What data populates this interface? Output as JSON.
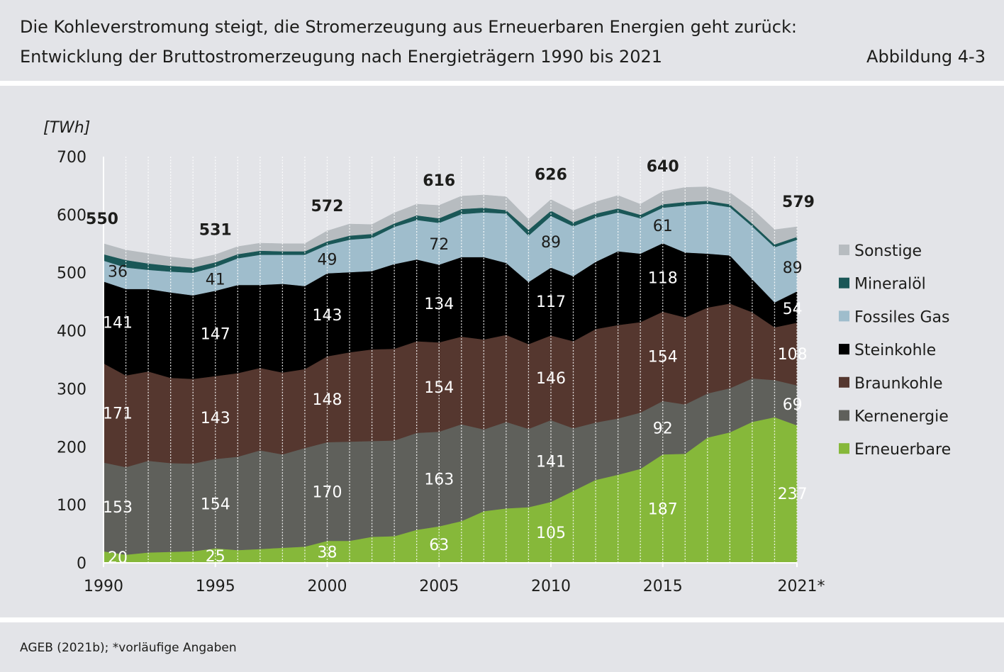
{
  "header": {
    "title_line1": "Die Kohleverstromung steigt, die Stromerzeugung aus Erneuerbaren Energien geht zurück:",
    "title_line2": "Entwicklung der Bruttostromerzeugung nach Energieträgern 1990 bis 2021",
    "figure_number": "Abbildung 4-3"
  },
  "footer": {
    "source": "AGEB (2021b); *vorläufige Angaben"
  },
  "chart_data": {
    "type": "area",
    "stacked": true,
    "ylabel": "[TWh]",
    "ylim": [
      0,
      700
    ],
    "yticks": [
      0,
      100,
      200,
      300,
      400,
      500,
      600,
      700
    ],
    "x": [
      1990,
      1991,
      1992,
      1993,
      1994,
      1995,
      1996,
      1997,
      1998,
      1999,
      2000,
      2001,
      2002,
      2003,
      2004,
      2005,
      2006,
      2007,
      2008,
      2009,
      2010,
      2011,
      2012,
      2013,
      2014,
      2015,
      2016,
      2017,
      2018,
      2019,
      2020,
      2021
    ],
    "xticks": [
      {
        "x": 1990,
        "label": "1990"
      },
      {
        "x": 1995,
        "label": "1995"
      },
      {
        "x": 2000,
        "label": "2000"
      },
      {
        "x": 2005,
        "label": "2005"
      },
      {
        "x": 2010,
        "label": "2010"
      },
      {
        "x": 2015,
        "label": "2015"
      },
      {
        "x": 2021,
        "label": "2021*"
      }
    ],
    "grid_x": true,
    "legend_position": "right",
    "series": [
      {
        "name": "Erneuerbare",
        "color": "#86b83a",
        "values": [
          20,
          14,
          18,
          19,
          20,
          25,
          22,
          24,
          26,
          28,
          38,
          38,
          45,
          46,
          57,
          63,
          72,
          89,
          94,
          96,
          105,
          124,
          143,
          152,
          162,
          187,
          188,
          216,
          225,
          243,
          251,
          237
        ],
        "labels": [
          {
            "x": 1990,
            "text": "20"
          },
          {
            "x": 1995,
            "text": "25"
          },
          {
            "x": 2000,
            "text": "38"
          },
          {
            "x": 2005,
            "text": "63"
          },
          {
            "x": 2010,
            "text": "105"
          },
          {
            "x": 2015,
            "text": "187"
          },
          {
            "x": 2020.8,
            "text": "237"
          }
        ]
      },
      {
        "name": "Kernenergie",
        "color": "#5f605b",
        "values": [
          153,
          151,
          158,
          153,
          151,
          154,
          161,
          170,
          161,
          170,
          170,
          171,
          165,
          165,
          167,
          163,
          167,
          141,
          149,
          135,
          141,
          108,
          99,
          97,
          97,
          92,
          85,
          76,
          76,
          75,
          64,
          69
        ],
        "labels": [
          {
            "x": 1990,
            "text": "153"
          },
          {
            "x": 1995,
            "text": "154"
          },
          {
            "x": 2000,
            "text": "170"
          },
          {
            "x": 2005,
            "text": "163"
          },
          {
            "x": 2010,
            "text": "141"
          },
          {
            "x": 2015,
            "text": "92"
          },
          {
            "x": 2020.8,
            "text": "69"
          }
        ]
      },
      {
        "name": "Braunkohle",
        "color": "#55372f",
        "values": [
          171,
          158,
          154,
          147,
          146,
          143,
          144,
          142,
          141,
          136,
          148,
          154,
          158,
          158,
          158,
          154,
          151,
          155,
          150,
          146,
          146,
          150,
          161,
          161,
          156,
          154,
          150,
          148,
          146,
          114,
          91,
          108
        ],
        "labels": [
          {
            "x": 1990,
            "text": "171"
          },
          {
            "x": 1995,
            "text": "143"
          },
          {
            "x": 2000,
            "text": "148"
          },
          {
            "x": 2005,
            "text": "154"
          },
          {
            "x": 2010,
            "text": "146"
          },
          {
            "x": 2015,
            "text": "154"
          },
          {
            "x": 2020.8,
            "text": "108"
          }
        ]
      },
      {
        "name": "Steinkohle",
        "color": "#000000",
        "values": [
          141,
          149,
          142,
          147,
          144,
          147,
          152,
          143,
          153,
          143,
          143,
          138,
          135,
          146,
          141,
          134,
          137,
          142,
          124,
          107,
          117,
          112,
          116,
          127,
          118,
          118,
          112,
          93,
          83,
          57,
          43,
          54
        ],
        "labels": [
          {
            "x": 1990,
            "text": "141"
          },
          {
            "x": 1995,
            "text": "147"
          },
          {
            "x": 2000,
            "text": "143"
          },
          {
            "x": 2005,
            "text": "134"
          },
          {
            "x": 2010,
            "text": "117"
          },
          {
            "x": 2015,
            "text": "118"
          },
          {
            "x": 2020.8,
            "text": "54"
          }
        ]
      },
      {
        "name": "Fossiles Gas",
        "color": "#9fbdcc",
        "values": [
          36,
          37,
          33,
          36,
          39,
          41,
          46,
          52,
          50,
          54,
          49,
          56,
          57,
          64,
          68,
          72,
          74,
          77,
          85,
          80,
          89,
          86,
          76,
          67,
          61,
          61,
          81,
          86,
          83,
          91,
          95,
          89
        ],
        "labels": [
          {
            "x": 1990,
            "text": "36"
          },
          {
            "x": 1995,
            "text": "41"
          },
          {
            "x": 2000,
            "text": "49"
          },
          {
            "x": 2005,
            "text": "72"
          },
          {
            "x": 2010,
            "text": "89"
          },
          {
            "x": 2015,
            "text": "61"
          },
          {
            "x": 2020.8,
            "text": "89"
          }
        ]
      },
      {
        "name": "Mineralöl",
        "color": "#1a5757",
        "values": [
          11,
          13,
          11,
          10,
          9,
          8,
          7,
          7,
          6,
          6,
          6,
          7,
          7,
          6,
          8,
          8,
          9,
          8,
          6,
          10,
          9,
          7,
          7,
          7,
          6,
          6,
          6,
          5,
          5,
          5,
          5,
          5
        ],
        "labels": []
      },
      {
        "name": "Sonstige",
        "color": "#b7bcc0",
        "values": [
          18,
          17,
          17,
          15,
          14,
          13,
          13,
          13,
          13,
          13,
          18,
          20,
          16,
          18,
          19,
          22,
          22,
          22,
          23,
          18,
          19,
          20,
          20,
          22,
          18,
          22,
          25,
          24,
          20,
          25,
          25,
          17
        ],
        "labels": []
      }
    ],
    "totals": [
      {
        "x": 1990,
        "text": "550"
      },
      {
        "x": 1995,
        "text": "531"
      },
      {
        "x": 2000,
        "text": "572"
      },
      {
        "x": 2005,
        "text": "616"
      },
      {
        "x": 2010,
        "text": "626"
      },
      {
        "x": 2015,
        "text": "640"
      },
      {
        "x": 2021,
        "text": "579"
      }
    ]
  }
}
